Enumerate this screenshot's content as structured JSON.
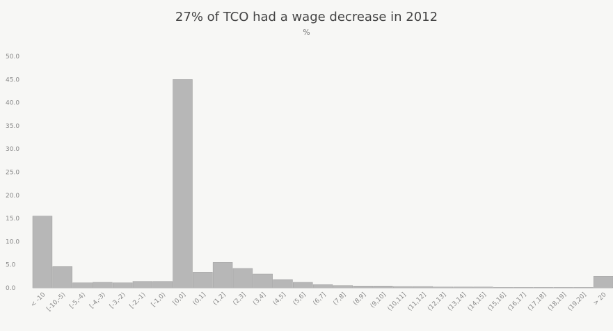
{
  "chart_data": {
    "type": "bar",
    "title": "27% of TCO had a wage decrease in 2012",
    "subtitle": "%",
    "xlabel": "",
    "ylabel": "",
    "ylim": [
      0,
      50
    ],
    "yticks": [
      "0.0",
      "5.0",
      "10.0",
      "15.0",
      "20.0",
      "25.0",
      "30.0",
      "35.0",
      "40.0",
      "45.0",
      "50.0"
    ],
    "grid": false,
    "categories": [
      "< -10",
      "[-10,-5)",
      "[-5,-4)",
      "[-4,-3)",
      "[-3,-2)",
      "[-2,-1)",
      "[-1,0)",
      "[0,0]",
      "(0,1]",
      "(1,2]",
      "(2,3]",
      "(3,4]",
      "(4,5]",
      "(5,6]",
      "(6,7]",
      "(7,8]",
      "(8,9]",
      "(9,10]",
      "(10,11]",
      "(11,12]",
      "(12,13]",
      "(13,14]",
      "(14,15]",
      "(15,16]",
      "(16,17]",
      "(17,18]",
      "(18,19]",
      "(19,20]",
      "> 20"
    ],
    "values": [
      15.5,
      4.6,
      1.1,
      1.2,
      1.1,
      1.4,
      1.4,
      45.0,
      3.4,
      5.5,
      4.2,
      3.0,
      1.8,
      1.2,
      0.7,
      0.5,
      0.4,
      0.4,
      0.3,
      0.3,
      0.2,
      0.2,
      0.2,
      0.1,
      0.1,
      0.1,
      0.1,
      0.1,
      2.5
    ]
  }
}
